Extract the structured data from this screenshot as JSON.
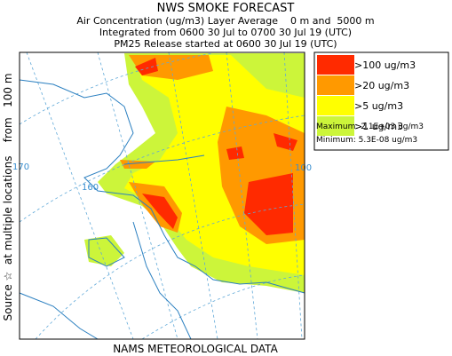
{
  "header": {
    "title": "NWS SMOKE FORECAST",
    "lines": [
      "Air Concentration (ug/m3) Layer Average    0 m and  5000 m",
      "Integrated from 0600 30 Jul to 0700 30 Jul 19 (UTC)",
      "PM25 Release started at 0600 30 Jul 19 (UTC)"
    ]
  },
  "source_label": "Source ☆  at multiple locations    from   100 m",
  "legend": {
    "items": [
      {
        "label": ">100 ug/m3",
        "color": "#ff2a00"
      },
      {
        "label": ">20 ug/m3",
        "color": "#ff9900"
      },
      {
        "label": ">5 ug/m3",
        "color": "#ffff00"
      },
      {
        "label": ">1 ug/m3",
        "color": "#ccf53a"
      }
    ],
    "maximum": "Maximum: 2.1E+03 ug/m3",
    "minimum": "Minimum: 5.3E-08 ug/m3"
  },
  "map": {
    "grid_labels": [
      "170",
      "160",
      "100"
    ]
  },
  "footer": "NAMS METEOROLOGICAL DATA"
}
